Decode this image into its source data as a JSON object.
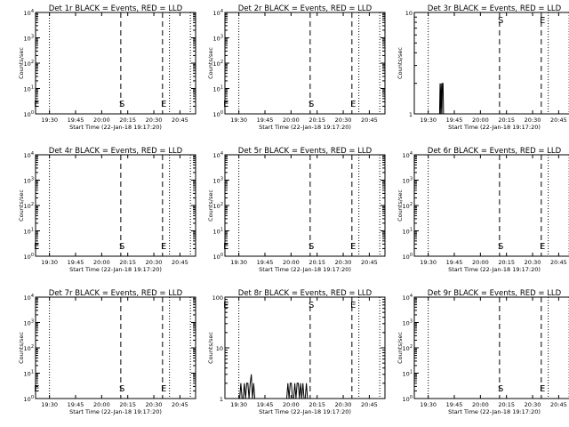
{
  "ylabel": "Counts/sec",
  "xlabel": "Start Time (22-Jan-18 19:17:20)",
  "x_tick_labels": [
    "19:30",
    "19:45",
    "20:00",
    "20:15",
    "20:30",
    "20:45"
  ],
  "colors": {
    "events": "#000000",
    "lld": "#ff0000"
  },
  "chart_data": [
    {
      "type": "line",
      "title": "Det 1r BLACK = Events, RED = LLD",
      "yscale": "log",
      "ylim": [
        1,
        10000
      ],
      "y_tick_labels": [
        "10^0",
        "10^1",
        "10^2",
        "10^3",
        "10^4"
      ],
      "markers": [
        "E",
        "S",
        "E"
      ],
      "series": [
        {
          "x": [],
          "values": []
        }
      ]
    },
    {
      "type": "line",
      "title": "Det 2r BLACK = Events, RED = LLD",
      "yscale": "log",
      "ylim": [
        1,
        10000
      ],
      "y_tick_labels": [
        "10^0",
        "10^1",
        "10^2",
        "10^3",
        "10^4"
      ],
      "markers": [
        "E",
        "S",
        "E"
      ],
      "series": [
        {
          "x": [],
          "values": []
        }
      ]
    },
    {
      "type": "line",
      "title": "Det 3r BLACK = Events, RED = LLD",
      "yscale": "log",
      "ylim": [
        1,
        10
      ],
      "y_tick_labels": [
        "1",
        "10"
      ],
      "markers": [
        "S",
        "E"
      ],
      "series": [
        {
          "x": [
            "19:36:30",
            "19:36:50",
            "19:37:10",
            "19:37:30",
            "19:37:50",
            "19:38:10",
            "19:38:30",
            "19:38:50",
            "19:39:10"
          ],
          "values": [
            1,
            2,
            1,
            2,
            1,
            2,
            2,
            1,
            1
          ]
        }
      ]
    },
    {
      "type": "line",
      "title": "Det 4r BLACK = Events, RED = LLD",
      "yscale": "log",
      "ylim": [
        1,
        10000
      ],
      "y_tick_labels": [
        "10^0",
        "10^1",
        "10^2",
        "10^3",
        "10^4"
      ],
      "markers": [
        "E",
        "S",
        "E"
      ],
      "series": [
        {
          "x": [],
          "values": []
        }
      ]
    },
    {
      "type": "line",
      "title": "Det 5r BLACK = Events, RED = LLD",
      "yscale": "log",
      "ylim": [
        1,
        10000
      ],
      "y_tick_labels": [
        "10^0",
        "10^1",
        "10^2",
        "10^3",
        "10^4"
      ],
      "markers": [
        "E",
        "S",
        "E"
      ],
      "series": [
        {
          "x": [],
          "values": []
        }
      ]
    },
    {
      "type": "line",
      "title": "Det 6r BLACK = Events, RED = LLD",
      "yscale": "log",
      "ylim": [
        1,
        10000
      ],
      "y_tick_labels": [
        "10^0",
        "10^1",
        "10^2",
        "10^3",
        "10^4"
      ],
      "markers": [
        "S",
        "E"
      ],
      "series": [
        {
          "x": [],
          "values": []
        }
      ]
    },
    {
      "type": "line",
      "title": "Det 7r BLACK = Events, RED = LLD",
      "yscale": "log",
      "ylim": [
        1,
        10000
      ],
      "y_tick_labels": [
        "10^0",
        "10^1",
        "10^2",
        "10^3",
        "10^4"
      ],
      "markers": [
        "E",
        "S",
        "E"
      ],
      "series": [
        {
          "x": [],
          "values": []
        }
      ]
    },
    {
      "type": "line",
      "title": "Det 8r BLACK = Events, RED = LLD",
      "yscale": "log",
      "ylim": [
        1,
        100
      ],
      "y_tick_labels": [
        "1",
        "10",
        "100"
      ],
      "markers": [
        "E",
        "S",
        "E"
      ],
      "series": [
        {
          "x": [
            "19:30:30",
            "19:31:10",
            "19:31:50",
            "19:32:30",
            "19:33:10",
            "19:33:50",
            "19:34:30",
            "19:35:10",
            "19:35:50",
            "19:36:30",
            "19:37:10",
            "19:37:50",
            "19:38:30",
            "19:39:10",
            "19:57:30",
            "19:58:10",
            "19:58:50",
            "19:59:30",
            "20:00:10",
            "20:00:50",
            "20:01:30",
            "20:02:10",
            "20:02:50",
            "20:03:30",
            "20:04:10",
            "20:04:50",
            "20:05:30",
            "20:06:10",
            "20:06:50",
            "20:07:30",
            "20:08:10",
            "20:08:50",
            "20:09:30"
          ],
          "values": [
            1,
            2,
            1,
            1,
            2,
            1,
            2,
            2,
            1,
            2,
            3,
            1,
            2,
            1,
            1,
            2,
            1,
            2,
            2,
            1,
            1,
            2,
            1,
            2,
            2,
            1,
            2,
            1,
            2,
            1,
            1,
            2,
            1
          ]
        }
      ]
    },
    {
      "type": "line",
      "title": "Det 9r BLACK = Events, RED = LLD",
      "yscale": "log",
      "ylim": [
        1,
        10000
      ],
      "y_tick_labels": [
        "10^0",
        "10^1",
        "10^2",
        "10^3",
        "10^4"
      ],
      "markers": [
        "S",
        "E"
      ],
      "series": [
        {
          "x": [],
          "values": []
        }
      ]
    }
  ]
}
